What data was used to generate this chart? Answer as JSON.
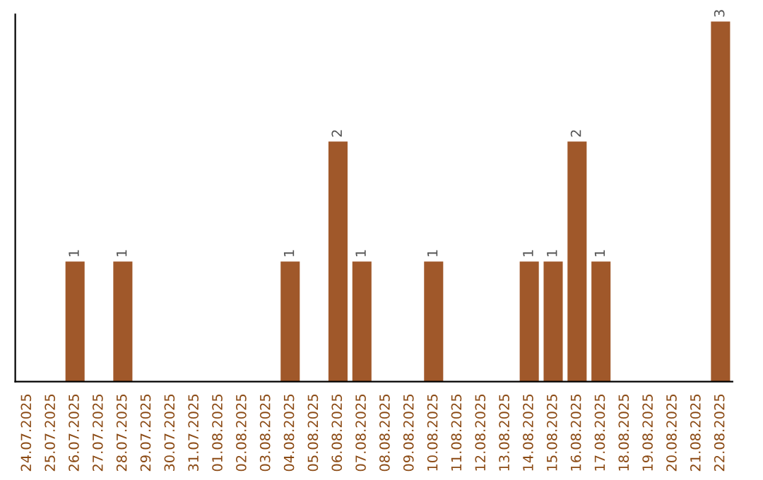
{
  "chart_data": {
    "type": "bar",
    "categories": [
      "24.07.2025",
      "25.07.2025",
      "26.07.2025",
      "27.07.2025",
      "28.07.2025",
      "29.07.2025",
      "30.07.2025",
      "31.07.2025",
      "01.08.2025",
      "02.08.2025",
      "03.08.2025",
      "04.08.2025",
      "05.08.2025",
      "06.08.2025",
      "07.08.2025",
      "08.08.2025",
      "09.08.2025",
      "10.08.2025",
      "11.08.2025",
      "12.08.2025",
      "13.08.2025",
      "14.08.2025",
      "15.08.2025",
      "16.08.2025",
      "17.08.2025",
      "18.08.2025",
      "19.08.2025",
      "20.08.2025",
      "21.08.2025",
      "22.08.2025"
    ],
    "values": [
      0,
      0,
      1,
      0,
      1,
      0,
      0,
      0,
      0,
      0,
      0,
      1,
      0,
      2,
      1,
      0,
      0,
      1,
      0,
      0,
      0,
      1,
      1,
      2,
      1,
      0,
      0,
      0,
      0,
      3
    ],
    "value_labels": [
      null,
      null,
      "1",
      null,
      "1",
      null,
      null,
      null,
      null,
      null,
      null,
      "1",
      null,
      "2",
      "1",
      null,
      null,
      "1",
      null,
      null,
      null,
      "1",
      "1",
      "2",
      "1",
      null,
      null,
      null,
      null,
      "3"
    ],
    "color": "#a0582a",
    "tick_labels": "x",
    "grid": false,
    "legend": false
  }
}
